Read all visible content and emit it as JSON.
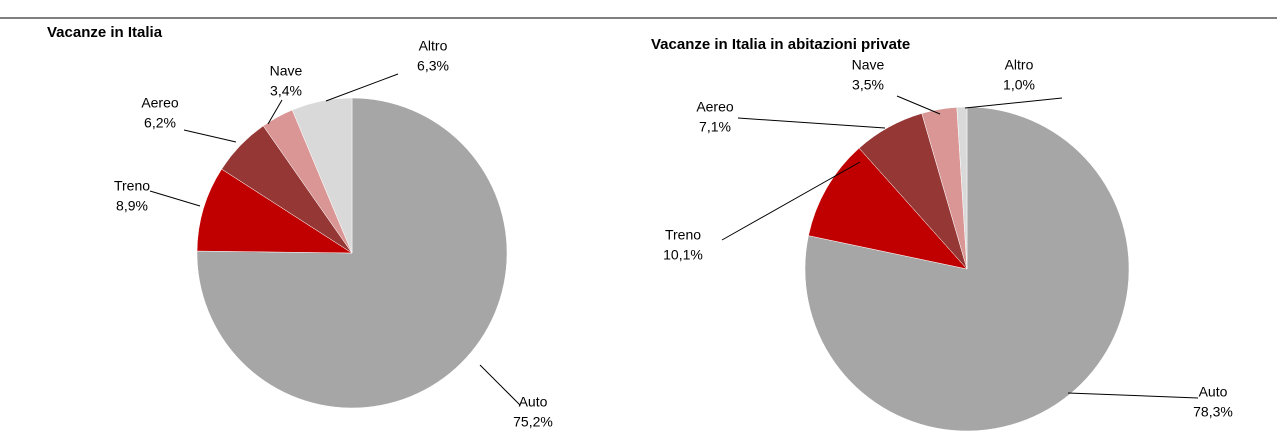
{
  "chart_data": [
    {
      "type": "pie",
      "title": "Vacanze in Italia",
      "categories": [
        "Auto",
        "Treno",
        "Aereo",
        "Nave",
        "Altro"
      ],
      "values": [
        75.2,
        8.9,
        6.2,
        3.4,
        6.3
      ],
      "value_labels": [
        "75,2%",
        "8,9%",
        "6,2%",
        "3,4%",
        "6,3%"
      ],
      "colors": [
        "#a6a6a6",
        "#c00000",
        "#953735",
        "#d99694",
        "#d9d9d9"
      ]
    },
    {
      "type": "pie",
      "title": "Vacanze in Italia in abitazioni private",
      "categories": [
        "Auto",
        "Treno",
        "Aereo",
        "Nave",
        "Altro"
      ],
      "values": [
        78.3,
        10.1,
        7.1,
        3.5,
        1.0
      ],
      "value_labels": [
        "78,3%",
        "10,1%",
        "7,1%",
        "3,5%",
        "1,0%"
      ],
      "colors": [
        "#a6a6a6",
        "#c00000",
        "#953735",
        "#d99694",
        "#d9d9d9"
      ]
    }
  ]
}
